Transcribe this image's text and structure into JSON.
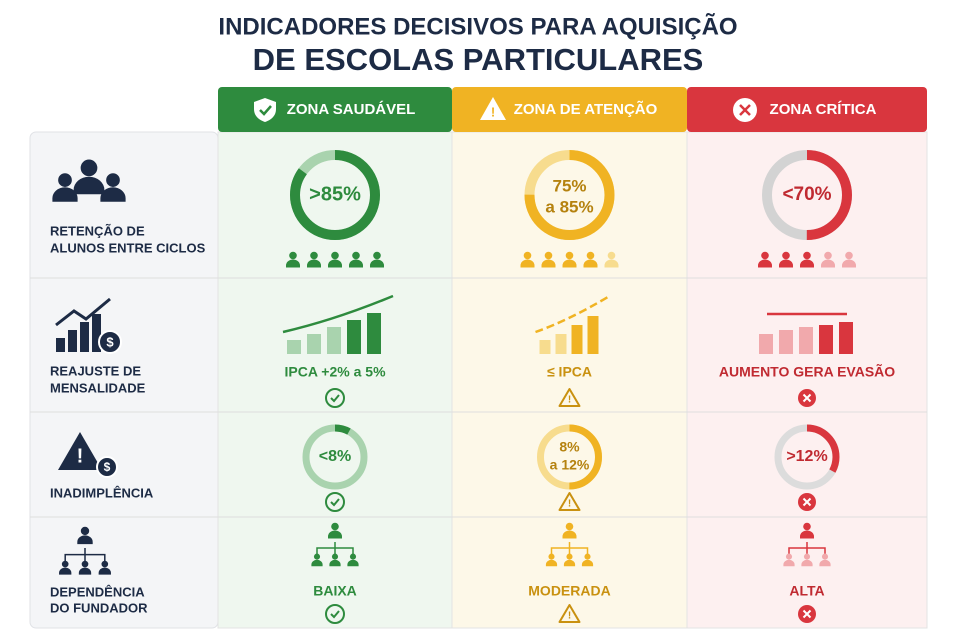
{
  "header": {
    "title": [
      "INDICADORES DECISIVOS PARA AQUISIÇÃO",
      "DE ESCOLAS PARTICULARES"
    ]
  },
  "table": {
    "columns": [
      "ZONA SAUDÁVEL",
      "ZONA DE ATENÇÃO",
      "ZONA CRÍTICA"
    ],
    "rows": [
      {
        "label": [
          "RETENÇÃO DE",
          "ALUNOS ENTRE CICLOS"
        ],
        "cells": [
          [
            ">85%"
          ],
          [
            "75%",
            "a 85%"
          ],
          [
            "<70%"
          ]
        ]
      },
      {
        "label": [
          "REAJUSTE DE",
          "MENSALIDADE"
        ],
        "cells": [
          [
            "IPCA +2% a 5%"
          ],
          [
            "≤ IPCA"
          ],
          [
            "AUMENTO GERA EVASÃO"
          ]
        ]
      },
      {
        "label": [
          "INADIMPLÊNCIA"
        ],
        "cells": [
          [
            "<8%"
          ],
          [
            "8%",
            "a 12%"
          ],
          [
            ">12%"
          ]
        ]
      },
      {
        "label": [
          "DEPENDÊNCIA",
          "DO FUNDADOR"
        ],
        "cells": [
          [
            "BAIXA"
          ],
          [
            "MODERADA"
          ],
          [
            "ALTA"
          ]
        ]
      }
    ]
  }
}
